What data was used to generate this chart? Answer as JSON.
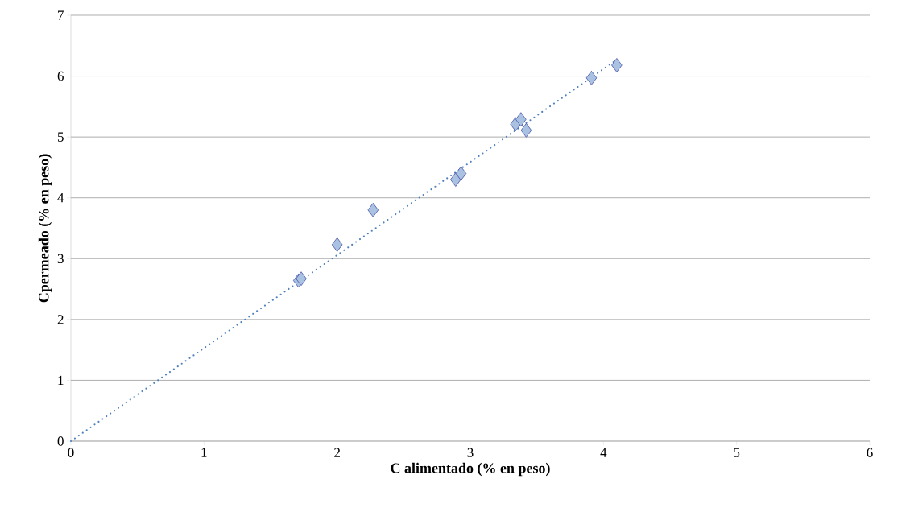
{
  "chart_data": {
    "type": "scatter",
    "xlabel": "C alimentado (% en peso)",
    "ylabel": "Cpermeado (% en peso)",
    "xlim": [
      0,
      6
    ],
    "ylim": [
      0,
      7
    ],
    "xticks": [
      0,
      1,
      2,
      3,
      4,
      5,
      6
    ],
    "yticks": [
      0,
      1,
      2,
      3,
      4,
      5,
      6,
      7
    ],
    "grid": "y",
    "series": [
      {
        "marker": "diamond",
        "color": "#a9c2e2",
        "x": [
          1.71,
          1.73,
          2.0,
          2.27,
          2.89,
          2.93,
          3.34,
          3.38,
          3.42,
          3.91,
          4.1
        ],
        "values": [
          2.64,
          2.67,
          3.23,
          3.8,
          4.3,
          4.4,
          5.21,
          5.29,
          5.11,
          5.97,
          6.18
        ]
      },
      {
        "type": "line",
        "marker": "none",
        "line_style": "dotted",
        "color": "#4f81bd",
        "x": [
          0,
          4.1
        ],
        "values": [
          0,
          6.27
        ]
      }
    ]
  }
}
